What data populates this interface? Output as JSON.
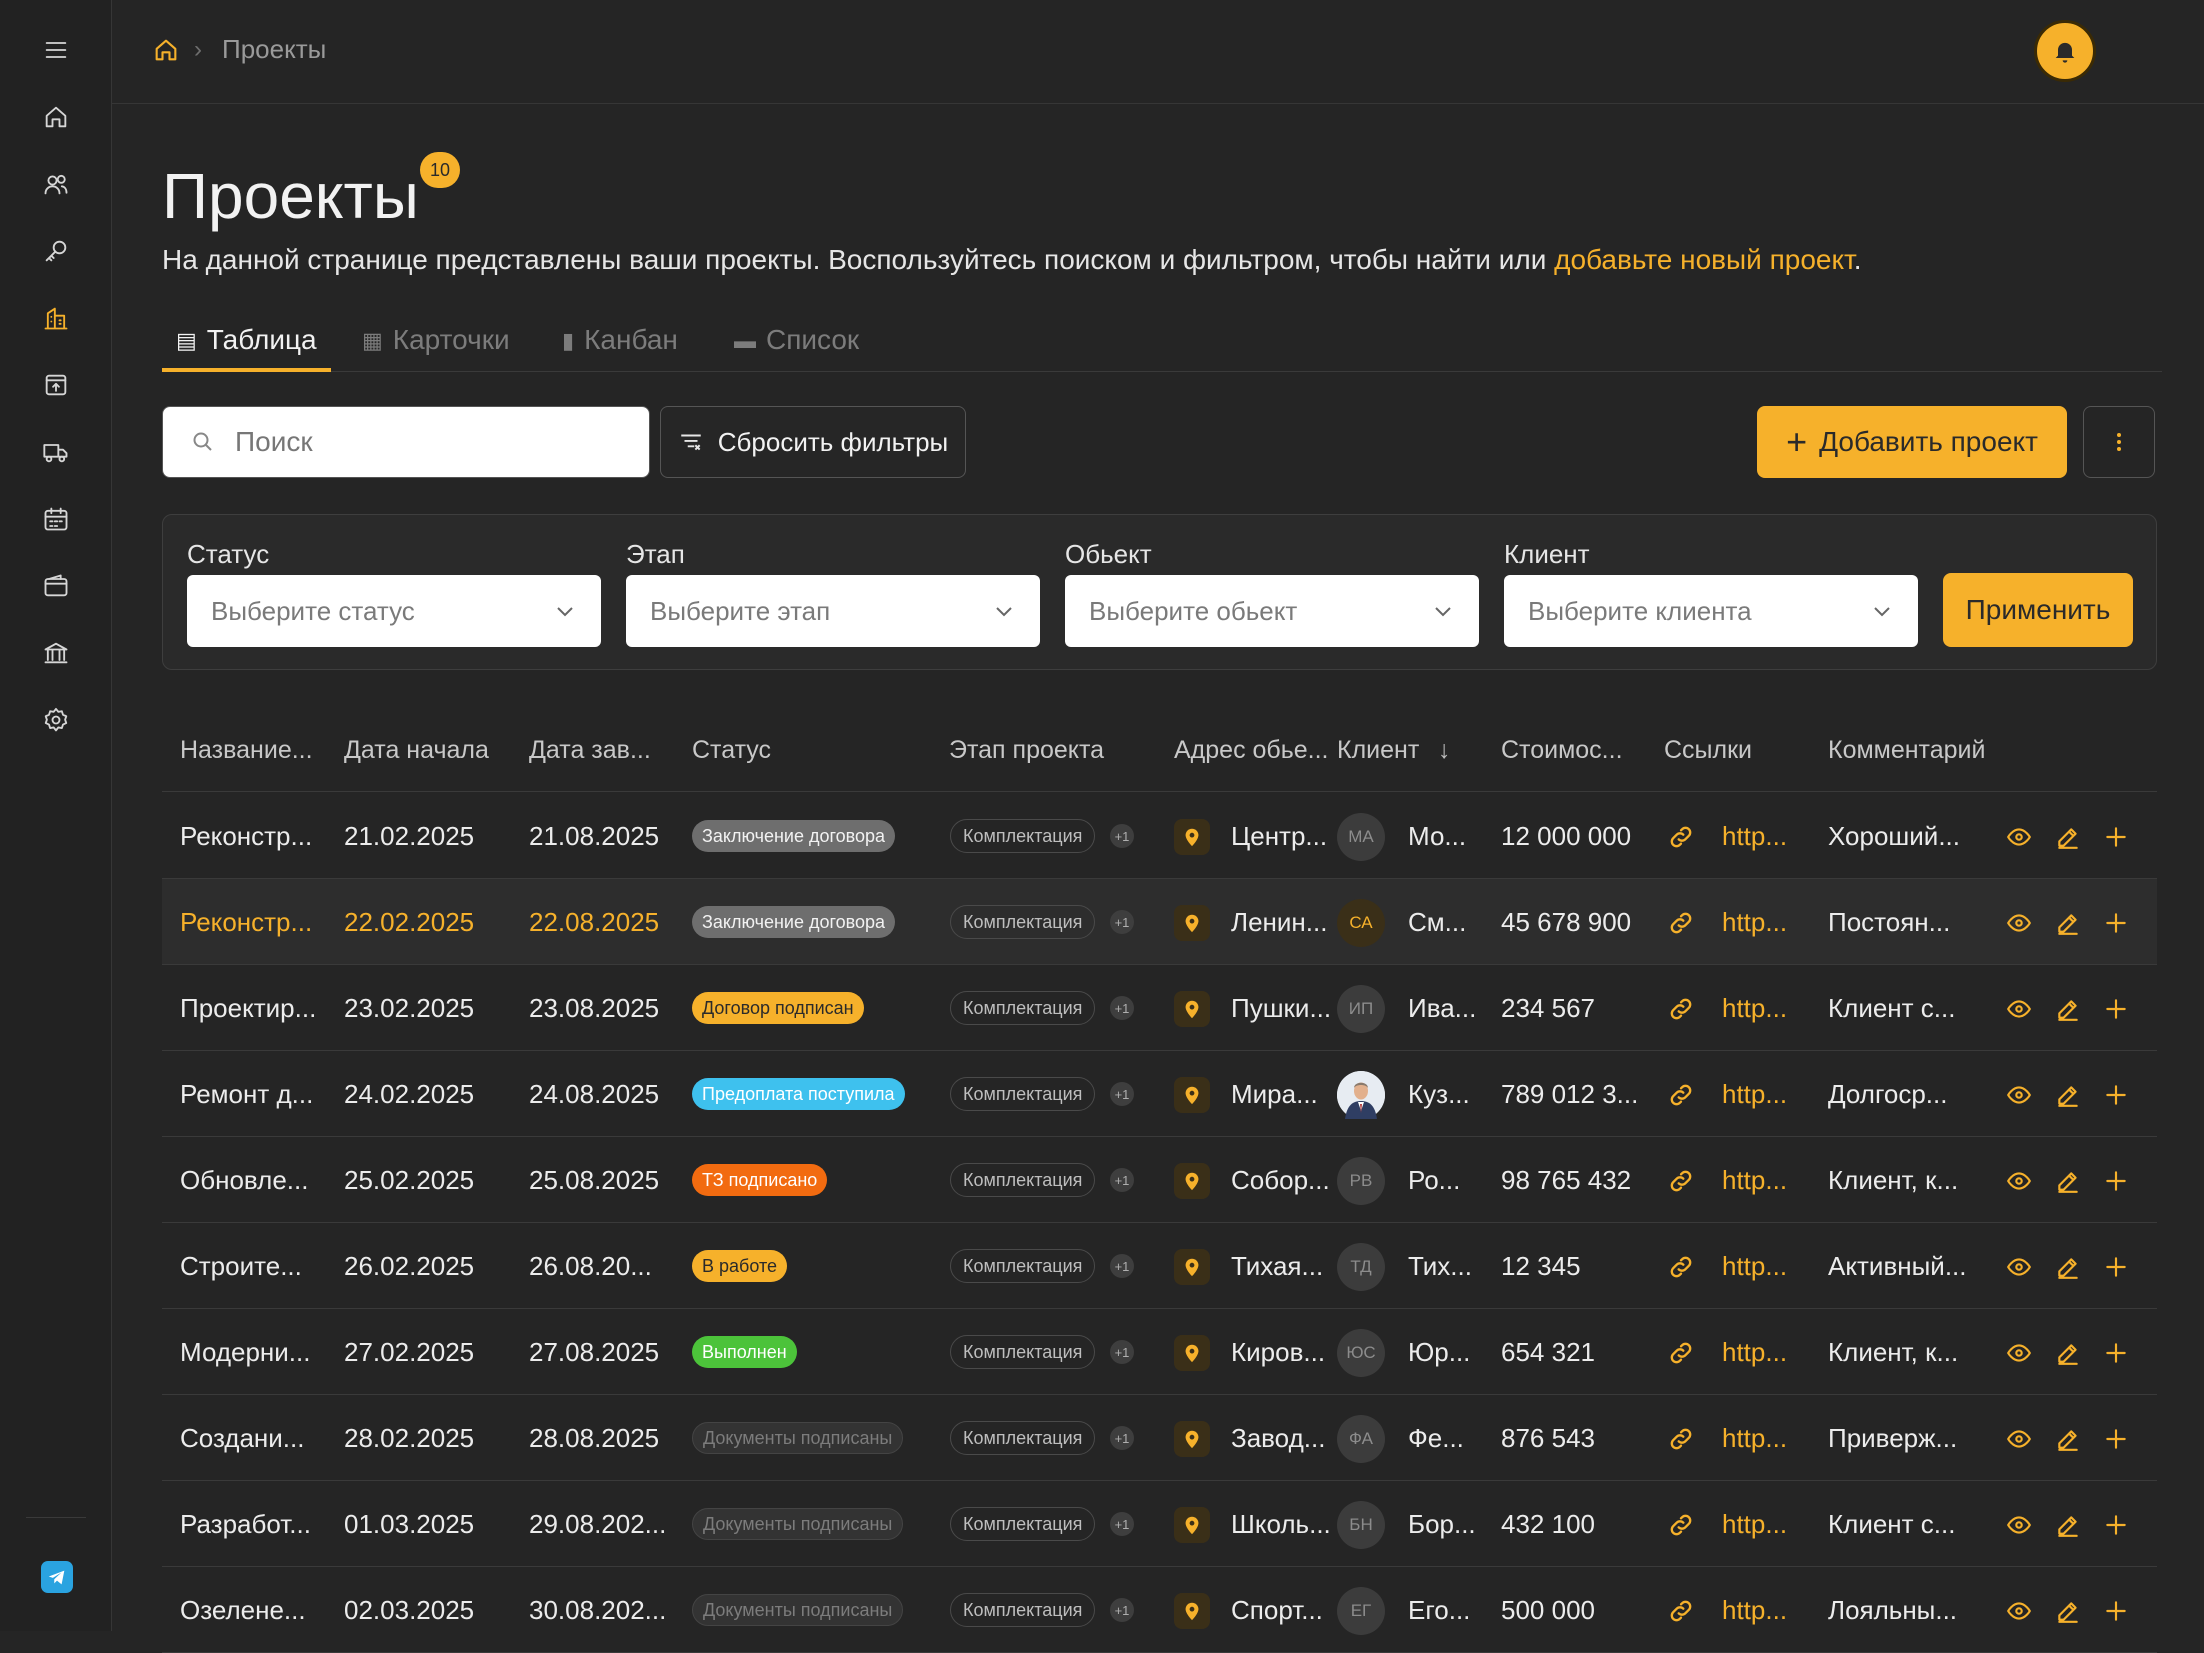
{
  "breadcrumb": {
    "current": "Проекты"
  },
  "page": {
    "title": "Проекты",
    "count": "10",
    "subtitle_prefix": "На данной странице представлены ваши проекты. Воспользуйтесь поиском и фильтром, чтобы найти или ",
    "subtitle_link": "добавьте новый проект",
    "subtitle_suffix": "."
  },
  "tabs": [
    {
      "label": "Таблица",
      "active": true
    },
    {
      "label": "Карточки"
    },
    {
      "label": "Канбан"
    },
    {
      "label": "Список"
    }
  ],
  "toolbar": {
    "search_placeholder": "Поиск",
    "reset_label": "Сбросить фильтры",
    "add_label": "Добавить проект"
  },
  "filters": {
    "status": {
      "label": "Статус",
      "placeholder": "Выберите статус"
    },
    "stage": {
      "label": "Этап",
      "placeholder": "Выберите этап"
    },
    "object": {
      "label": "Обьект",
      "placeholder": "Выберите обьект"
    },
    "client": {
      "label": "Клиент",
      "placeholder": "Выберите клиента"
    },
    "apply_label": "Применить"
  },
  "columns": [
    "Название...",
    "Дата начала",
    "Дата зав...",
    "Статус",
    "Этап проекта",
    "Адрес обье...",
    "Клиент",
    "Стоимос...",
    "Ссылки",
    "Комментарий"
  ],
  "colors": {
    "accent": "#F6B12B",
    "bg": "#252525"
  },
  "rows": [
    {
      "name": "Реконстр...",
      "start": "21.02.2025",
      "end": "21.08.2025",
      "status": "Заключение договора",
      "status_style": "gray",
      "stage": "Комплектация",
      "stage_extra": "+1",
      "address": "Центр...",
      "client_initials": "МА",
      "client": "Мо...",
      "cost": "12 000 000",
      "link": "http...",
      "comment": "Хороший..."
    },
    {
      "name": "Реконстр...",
      "start": "22.02.2025",
      "end": "22.08.2025",
      "status": "Заключение договора",
      "status_style": "gray",
      "stage": "Комплектация",
      "stage_extra": "+1",
      "address": "Ленин...",
      "client_initials": "СА",
      "client": "См...",
      "cost": "45 678 900",
      "link": "http...",
      "comment": "Постоян...",
      "highlight": true
    },
    {
      "name": "Проектир...",
      "start": "23.02.2025",
      "end": "23.08.2025",
      "status": "Договор подписан",
      "status_style": "orange",
      "stage": "Комплектация",
      "stage_extra": "+1",
      "address": "Пушки...",
      "client_initials": "ИП",
      "client": "Ива...",
      "cost": "234 567",
      "link": "http...",
      "comment": "Клиент с..."
    },
    {
      "name": "Ремонт д...",
      "start": "24.02.2025",
      "end": "24.08.2025",
      "status": "Предоплата поступила",
      "status_style": "blue",
      "stage": "Комплектация",
      "stage_extra": "+1",
      "address": "Мира...",
      "client_initials": "",
      "client": "Куз...",
      "cost": "789 012 3...",
      "link": "http...",
      "comment": "Долгоср..."
    },
    {
      "name": "Обновле...",
      "start": "25.02.2025",
      "end": "25.08.2025",
      "status": "ТЗ подписано",
      "status_style": "red",
      "stage": "Комплектация",
      "stage_extra": "+1",
      "address": "Собор...",
      "client_initials": "РВ",
      "client": "Ро...",
      "cost": "98 765 432",
      "link": "http...",
      "comment": "Клиент, к..."
    },
    {
      "name": "Строите...",
      "start": "26.02.2025",
      "end": "26.08.20...",
      "status": "В работе",
      "status_style": "yellow",
      "stage": "Комплектация",
      "stage_extra": "+1",
      "address": "Тихая...",
      "client_initials": "ТД",
      "client": "Тих...",
      "cost": "12 345",
      "link": "http...",
      "comment": "Активный..."
    },
    {
      "name": "Модерни...",
      "start": "27.02.2025",
      "end": "27.08.2025",
      "status": "Выполнен",
      "status_style": "green",
      "stage": "Комплектация",
      "stage_extra": "+1",
      "address": "Киров...",
      "client_initials": "ЮС",
      "client": "Юр...",
      "cost": "654 321",
      "link": "http...",
      "comment": "Клиент, к..."
    },
    {
      "name": "Создани...",
      "start": "28.02.2025",
      "end": "28.08.2025",
      "status": "Документы подписаны",
      "status_style": "dark",
      "stage": "Комплектация",
      "stage_extra": "+1",
      "address": "Завод...",
      "client_initials": "ФА",
      "client": "Фе...",
      "cost": "876 543",
      "link": "http...",
      "comment": "Приверж..."
    },
    {
      "name": "Разработ...",
      "start": "01.03.2025",
      "end": "29.08.202...",
      "status": "Документы подписаны",
      "status_style": "dark",
      "stage": "Комплектация",
      "stage_extra": "+1",
      "address": "Школь...",
      "client_initials": "БН",
      "client": "Бор...",
      "cost": "432 100",
      "link": "http...",
      "comment": "Клиент с..."
    },
    {
      "name": "Озелене...",
      "start": "02.03.2025",
      "end": "30.08.202...",
      "status": "Документы подписаны",
      "status_style": "dark",
      "stage": "Комплектация",
      "stage_extra": "+1",
      "address": "Спорт...",
      "client_initials": "ЕГ",
      "client": "Его...",
      "cost": "500 000",
      "link": "http...",
      "comment": "Лояльны..."
    }
  ]
}
